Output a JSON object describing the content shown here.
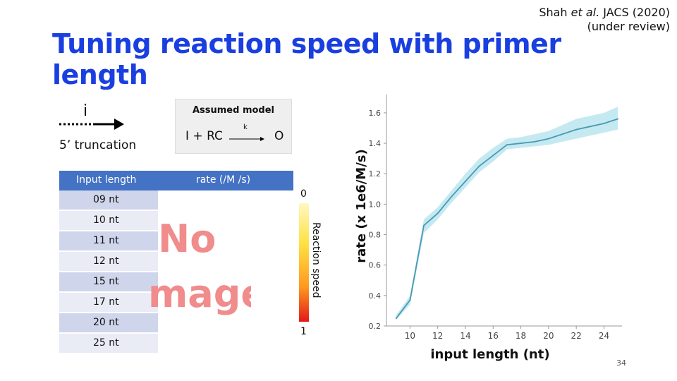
{
  "citation": {
    "line1_prefix": "Shah ",
    "line1_italic": "et al.",
    "line1_suffix": " JACS (2020)",
    "line2": "(under review)"
  },
  "title": "Tuning reaction speed with primer length",
  "primer": {
    "label_i": "i",
    "truncation_label": "5’ truncation"
  },
  "model": {
    "title": "Assumed model",
    "lhs": "I + RC",
    "rate_symbol": "k",
    "rhs": "O"
  },
  "table": {
    "headers": {
      "length": "Input length",
      "rate": "rate (/M /s)"
    },
    "rows": [
      "09 nt",
      "10 nt",
      "11 nt",
      "12 nt",
      "15 nt",
      "17 nt",
      "20 nt",
      "25 nt"
    ]
  },
  "placeholder_image": {
    "line1": "No",
    "line2": "mage"
  },
  "colorbar": {
    "top_label": "0",
    "bottom_label": "1",
    "axis_label": "Reaction speed",
    "colors": [
      "#fff8c0",
      "#ffe040",
      "#ff9a20",
      "#e21a1a"
    ]
  },
  "chart_data": {
    "type": "line",
    "xlabel": "input length (nt)",
    "ylabel": "rate (x 1e6/M/s)",
    "xlim": [
      8.3,
      25.3
    ],
    "ylim": [
      0.2,
      1.72
    ],
    "xticks": [
      10,
      12,
      14,
      16,
      18,
      20,
      22,
      24
    ],
    "yticks": [
      0.2,
      0.4,
      0.6,
      0.8,
      1.0,
      1.2,
      1.4,
      1.6
    ],
    "grid": false,
    "line_color": "#4a9ab5",
    "band_color": "#9fdbe8",
    "series": [
      {
        "x": [
          9,
          10,
          11,
          12,
          13,
          14,
          15,
          16,
          17,
          18,
          19,
          20,
          21,
          22,
          23,
          24,
          25
        ],
        "values": [
          0.25,
          0.37,
          0.86,
          0.94,
          1.05,
          1.15,
          1.25,
          1.32,
          1.39,
          1.4,
          1.41,
          1.43,
          1.46,
          1.49,
          1.51,
          1.53,
          1.56
        ],
        "lower": [
          0.24,
          0.34,
          0.81,
          0.9,
          1.01,
          1.11,
          1.21,
          1.28,
          1.36,
          1.37,
          1.38,
          1.39,
          1.41,
          1.43,
          1.45,
          1.47,
          1.49
        ],
        "upper": [
          0.27,
          0.4,
          0.9,
          0.98,
          1.09,
          1.2,
          1.3,
          1.37,
          1.43,
          1.44,
          1.46,
          1.48,
          1.52,
          1.56,
          1.58,
          1.6,
          1.64
        ]
      }
    ]
  },
  "page_number": "34"
}
